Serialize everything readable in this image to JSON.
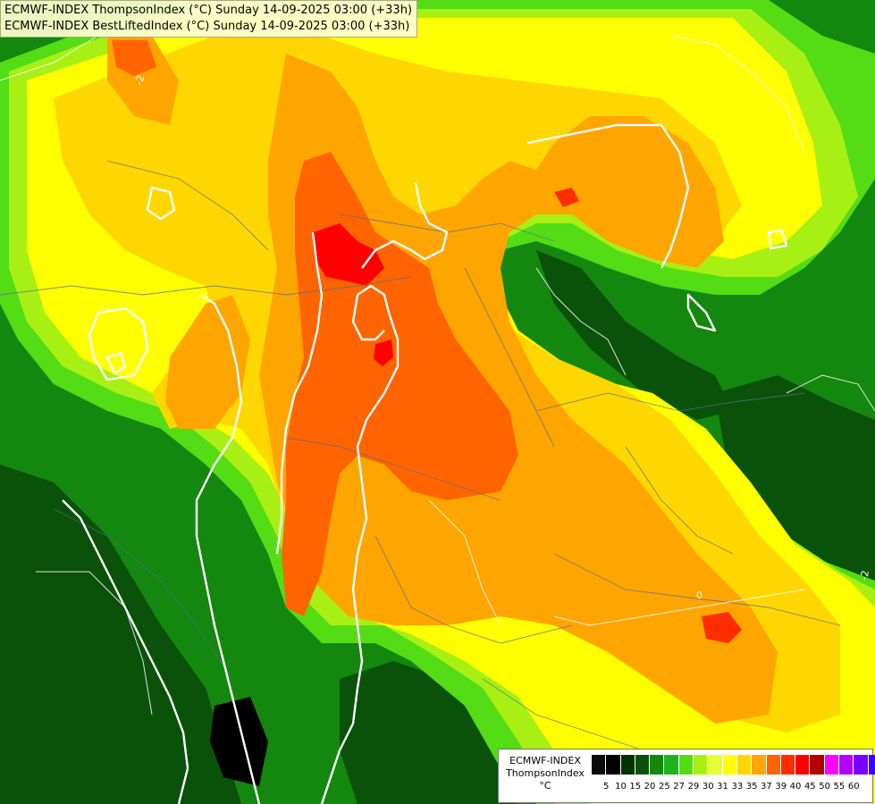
{
  "header": {
    "line1": "ECMWF-INDEX ThompsonIndex (°C) Sunday 14-09-2025 03:00 (+33h)",
    "line2": "ECMWF-INDEX BestLiftedIndex (°C) Sunday 14-09-2025 03:00 (+33h)"
  },
  "legend": {
    "title": "ECMWF-INDEX",
    "variable": "ThompsonIndex",
    "unit": "°C",
    "colors": [
      "#0a0a0a",
      "#000000",
      "#003300",
      "#0a520a",
      "#14870f",
      "#1eb41e",
      "#54dc14",
      "#a8f014",
      "#e6ff32",
      "#ffff00",
      "#ffd700",
      "#ffa500",
      "#ff6400",
      "#ff2d00",
      "#ff0000",
      "#b40000",
      "#ff00ff",
      "#b400ff",
      "#7800ff",
      "#3c00ff",
      "#0000ff"
    ],
    "ticks": [
      "5",
      "10",
      "15",
      "20",
      "25",
      "27",
      "29",
      "30",
      "31",
      "33",
      "35",
      "37",
      "39",
      "40",
      "45",
      "50",
      "55",
      "60"
    ]
  },
  "contours": {
    "label_a": "-2",
    "label_b": "0",
    "label_c": "-2"
  },
  "colors": {
    "dark_green": "#0a520a",
    "green": "#1eb41e",
    "light_green": "#54dc14",
    "lime": "#a8f014",
    "yellow": "#ffff00",
    "light_orange": "#ffd700",
    "orange": "#ffa500",
    "dark_orange": "#ff6400",
    "red": "#ff0000",
    "black": "#000000",
    "contour_white": "#ffffff"
  }
}
